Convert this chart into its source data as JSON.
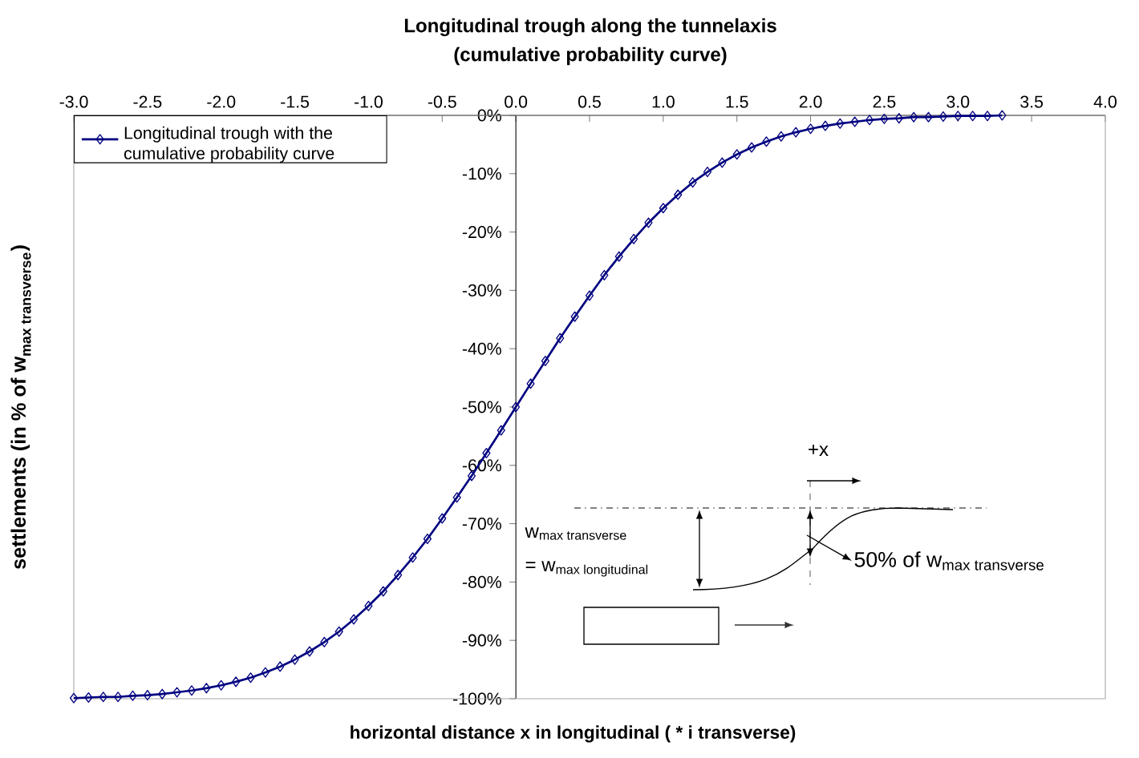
{
  "chart_data": {
    "type": "line",
    "title": "Longitudinal trough along the tunnelaxis",
    "subtitle": "(cumulative probability curve)",
    "xlabel": "horizontal distance x in longitudinal ( * i transverse)",
    "ylabel": "\\text{settlements (in \\% of w}_{\\text{max transverse}}\\text{)}",
    "x": [
      -3.0,
      -2.9,
      -2.8,
      -2.7,
      -2.6,
      -2.5,
      -2.4,
      -2.3,
      -2.2,
      -2.1,
      -2.0,
      -1.9,
      -1.8,
      -1.7,
      -1.6,
      -1.5,
      -1.4,
      -1.3,
      -1.2,
      -1.1,
      -1.0,
      -0.9,
      -0.8,
      -0.7,
      -0.6,
      -0.5,
      -0.4,
      -0.3,
      -0.2,
      -0.1,
      0.0,
      0.1,
      0.2,
      0.3,
      0.4,
      0.5,
      0.6,
      0.7,
      0.8,
      0.9,
      1.0,
      1.1,
      1.2,
      1.3,
      1.4,
      1.5,
      1.6,
      1.7,
      1.8,
      1.9,
      2.0,
      2.1,
      2.2,
      2.3,
      2.4,
      2.5,
      2.6,
      2.7,
      2.8,
      2.9,
      3.0,
      3.1,
      3.2,
      3.3
    ],
    "series": [
      {
        "name": "Longitudinal trough with the cumulative probability curve",
        "color": "#000080",
        "values": [
          -99.9,
          -99.8,
          -99.7,
          -99.7,
          -99.5,
          -99.4,
          -99.2,
          -98.9,
          -98.6,
          -98.2,
          -97.7,
          -97.1,
          -96.4,
          -95.5,
          -94.5,
          -93.3,
          -91.9,
          -90.3,
          -88.5,
          -86.4,
          -84.1,
          -81.6,
          -78.8,
          -75.8,
          -72.6,
          -69.1,
          -65.5,
          -61.8,
          -57.9,
          -54.0,
          -50.0,
          -46.0,
          -42.1,
          -38.2,
          -34.5,
          -30.9,
          -27.4,
          -24.2,
          -21.2,
          -18.4,
          -15.9,
          -13.6,
          -11.5,
          -9.7,
          -8.1,
          -6.7,
          -5.5,
          -4.5,
          -3.6,
          -2.9,
          -2.3,
          -1.8,
          -1.4,
          -1.1,
          -0.8,
          -0.6,
          -0.5,
          -0.3,
          -0.3,
          -0.2,
          -0.1,
          -0.1,
          -0.1,
          0.0
        ]
      }
    ],
    "xlim": [
      -3.0,
      4.0
    ],
    "xticks": [
      {
        "value": -3.0,
        "label": "-3.0"
      },
      {
        "value": -2.5,
        "label": "-2.5"
      },
      {
        "value": -2.0,
        "label": "-2.0"
      },
      {
        "value": -1.5,
        "label": "-1.5"
      },
      {
        "value": -1.0,
        "label": "-1.0"
      },
      {
        "value": -0.5,
        "label": "-0.5"
      },
      {
        "value": 0.0,
        "label": "0.0"
      },
      {
        "value": 0.5,
        "label": "0.5"
      },
      {
        "value": 1.0,
        "label": "1.0"
      },
      {
        "value": 1.5,
        "label": "1.5"
      },
      {
        "value": 2.0,
        "label": "2.0"
      },
      {
        "value": 2.5,
        "label": "2.5"
      },
      {
        "value": 3.0,
        "label": "3.0"
      },
      {
        "value": 3.5,
        "label": "3.5"
      },
      {
        "value": 4.0,
        "label": "4.0"
      }
    ],
    "ylim": [
      -100,
      0
    ],
    "yticks": [
      {
        "value": 0,
        "label": "0%"
      },
      {
        "value": -10,
        "label": "-10%"
      },
      {
        "value": -20,
        "label": "-20%"
      },
      {
        "value": -30,
        "label": "-30%"
      },
      {
        "value": -40,
        "label": "-40%"
      },
      {
        "value": -50,
        "label": "-50%"
      },
      {
        "value": -60,
        "label": "-60%"
      },
      {
        "value": -70,
        "label": "-70%"
      },
      {
        "value": -80,
        "label": "-80%"
      },
      {
        "value": -90,
        "label": "-90%"
      },
      {
        "value": -100,
        "label": "-100%"
      }
    ],
    "grid": false,
    "legend": "top left",
    "marker": "diamond",
    "line_style": "solid",
    "annotations": [
      "\\text{+x}",
      "\\text{w}_{\\text{max transverse}}",
      "\\text{= w}_{\\text{max longitudinal}}",
      "\\text{50\\% of w}_{\\text{max transverse}}"
    ]
  }
}
